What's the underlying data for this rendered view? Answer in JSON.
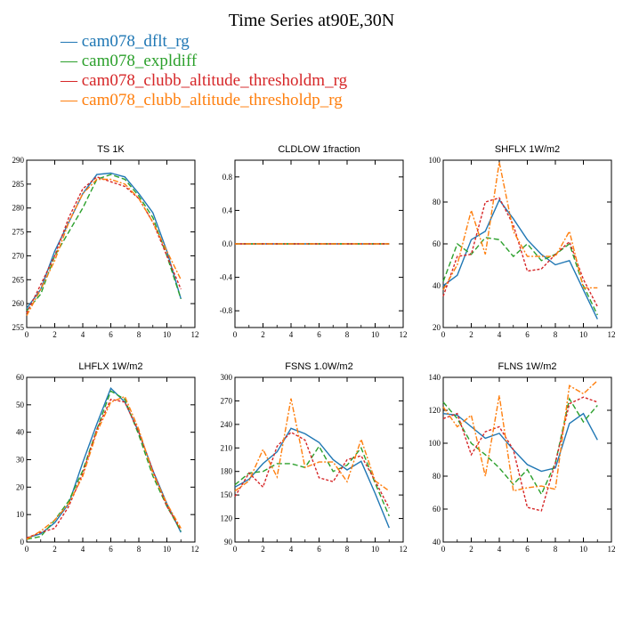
{
  "title": "Time Series at90E,30N",
  "legend": [
    {
      "label": "cam078_dflt_rg",
      "color": "#1f77b4"
    },
    {
      "label": "cam078_expldiff",
      "color": "#2ca02c"
    },
    {
      "label": "cam078_clubb_altitude_thresholdm_rg",
      "color": "#d62728"
    },
    {
      "label": "cam078_clubb_altitude_thresholdp_rg",
      "color": "#ff7f0e"
    }
  ],
  "chart_data": [
    {
      "type": "line",
      "title": "TS   1K",
      "x": [
        0,
        1,
        2,
        3,
        4,
        5,
        6,
        7,
        8,
        9,
        10,
        11
      ],
      "xlim": [
        0,
        12
      ],
      "xticks": [
        0,
        2,
        4,
        6,
        8,
        10,
        12
      ],
      "ylim": [
        255,
        290
      ],
      "yticks": [
        255,
        260,
        265,
        270,
        275,
        280,
        285,
        290
      ],
      "series": [
        {
          "name": "cam078_dflt_rg",
          "values": [
            259,
            263,
            271,
            277,
            283,
            287,
            287.3,
            286.5,
            283,
            279,
            271,
            261
          ]
        },
        {
          "name": "cam078_expldiff",
          "values": [
            258.5,
            262,
            270,
            275,
            280,
            286,
            287,
            286,
            282.5,
            278,
            270,
            261
          ]
        },
        {
          "name": "cam078_clubb_altitude_thresholdm_rg",
          "values": [
            258,
            264,
            270,
            278,
            284,
            286.5,
            285.5,
            284.5,
            282,
            277,
            270,
            263
          ]
        },
        {
          "name": "cam078_clubb_altitude_thresholdp_rg",
          "values": [
            257.5,
            263,
            269,
            277,
            283,
            286,
            286,
            285,
            282,
            277,
            271,
            265
          ]
        }
      ]
    },
    {
      "type": "line",
      "title": "CLDLOW   1fraction",
      "x": [
        0,
        1,
        2,
        3,
        4,
        5,
        6,
        7,
        8,
        9,
        10,
        11
      ],
      "xlim": [
        0,
        12
      ],
      "xticks": [
        0,
        2,
        4,
        6,
        8,
        10,
        12
      ],
      "ylim": [
        -1,
        1
      ],
      "yticks": [
        -0.8,
        -0.4,
        0.0,
        0.4,
        0.8
      ],
      "ytick_labels": [
        "-0.8",
        "-0.4",
        "0.0",
        "0.4",
        "0.8"
      ],
      "series": [
        {
          "name": "cam078_dflt_rg",
          "values": [
            0,
            0,
            0,
            0,
            0,
            0,
            0,
            0,
            0,
            0,
            0,
            0
          ]
        },
        {
          "name": "cam078_expldiff",
          "values": [
            0,
            0,
            0,
            0,
            0,
            0,
            0,
            0,
            0,
            0,
            0,
            0
          ]
        },
        {
          "name": "cam078_clubb_altitude_thresholdm_rg",
          "values": [
            0,
            0,
            0,
            0,
            0,
            0,
            0,
            0,
            0,
            0,
            0,
            0
          ]
        },
        {
          "name": "cam078_clubb_altitude_thresholdp_rg",
          "values": [
            0,
            0,
            0,
            0,
            0,
            0,
            0,
            0,
            0,
            0,
            0,
            0
          ]
        }
      ]
    },
    {
      "type": "line",
      "title": "SHFLX   1W/m2",
      "x": [
        0,
        1,
        2,
        3,
        4,
        5,
        6,
        7,
        8,
        9,
        10,
        11
      ],
      "xlim": [
        0,
        12
      ],
      "xticks": [
        0,
        2,
        4,
        6,
        8,
        10,
        12
      ],
      "ylim": [
        20,
        100
      ],
      "yticks": [
        20,
        40,
        60,
        80,
        100
      ],
      "series": [
        {
          "name": "cam078_dflt_rg",
          "values": [
            40,
            45,
            62,
            66,
            81,
            72,
            62,
            55,
            50,
            52,
            38,
            24
          ]
        },
        {
          "name": "cam078_expldiff",
          "values": [
            42,
            60,
            55,
            63,
            62,
            54,
            60,
            52,
            55,
            60,
            40,
            26
          ]
        },
        {
          "name": "cam078_clubb_altitude_thresholdm_rg",
          "values": [
            35,
            54,
            55,
            80,
            82,
            69,
            47,
            48,
            55,
            61,
            43,
            30
          ]
        },
        {
          "name": "cam078_clubb_altitude_thresholdp_rg",
          "values": [
            38,
            50,
            76,
            55,
            99,
            66,
            54,
            54,
            54,
            66,
            39,
            39
          ]
        }
      ]
    },
    {
      "type": "line",
      "title": "LHFLX   1W/m2",
      "x": [
        0,
        1,
        2,
        3,
        4,
        5,
        6,
        7,
        8,
        9,
        10,
        11
      ],
      "xlim": [
        0,
        12
      ],
      "xticks": [
        0,
        2,
        4,
        6,
        8,
        10,
        12
      ],
      "ylim": [
        0,
        60
      ],
      "yticks": [
        0,
        10,
        20,
        30,
        40,
        50,
        60
      ],
      "series": [
        {
          "name": "cam078_dflt_rg",
          "values": [
            1.5,
            3,
            7,
            14,
            29,
            43,
            56,
            51,
            40,
            26,
            14,
            3.5
          ]
        },
        {
          "name": "cam078_expldiff",
          "values": [
            1,
            2,
            8,
            15,
            26,
            41,
            55,
            52,
            39,
            24,
            13,
            4
          ]
        },
        {
          "name": "cam078_clubb_altitude_thresholdm_rg",
          "values": [
            1.5,
            3.5,
            5,
            13,
            25,
            41,
            52,
            51,
            40,
            26,
            13,
            4.5
          ]
        },
        {
          "name": "cam078_clubb_altitude_thresholdp_rg",
          "values": [
            1,
            4,
            8,
            14,
            24,
            40,
            51,
            53,
            41,
            25,
            14,
            5
          ]
        }
      ]
    },
    {
      "type": "line",
      "title": "FSNS   1.0W/m2",
      "x": [
        0,
        1,
        2,
        3,
        4,
        5,
        6,
        7,
        8,
        9,
        10,
        11
      ],
      "xlim": [
        0,
        12
      ],
      "xticks": [
        0,
        2,
        4,
        6,
        8,
        10,
        12
      ],
      "ylim": [
        90,
        300
      ],
      "yticks": [
        90,
        120,
        150,
        180,
        210,
        240,
        270,
        300
      ],
      "series": [
        {
          "name": "cam078_dflt_rg",
          "values": [
            160,
            170,
            190,
            205,
            235,
            228,
            217,
            195,
            182,
            193,
            152,
            108
          ]
        },
        {
          "name": "cam078_expldiff",
          "values": [
            163,
            178,
            180,
            190,
            190,
            185,
            212,
            180,
            188,
            210,
            165,
            123
          ]
        },
        {
          "name": "cam078_clubb_altitude_thresholdm_rg",
          "values": [
            148,
            178,
            160,
            212,
            230,
            220,
            172,
            167,
            195,
            200,
            168,
            133
          ]
        },
        {
          "name": "cam078_clubb_altitude_thresholdp_rg",
          "values": [
            155,
            168,
            208,
            173,
            273,
            185,
            192,
            192,
            167,
            221,
            168,
            155
          ]
        }
      ]
    },
    {
      "type": "line",
      "title": "FLNS   1W/m2",
      "x": [
        0,
        1,
        2,
        3,
        4,
        5,
        6,
        7,
        8,
        9,
        10,
        11
      ],
      "xlim": [
        0,
        12
      ],
      "xticks": [
        0,
        2,
        4,
        6,
        8,
        10,
        12
      ],
      "ylim": [
        40,
        140
      ],
      "yticks": [
        40,
        60,
        80,
        100,
        120,
        140
      ],
      "series": [
        {
          "name": "cam078_dflt_rg",
          "values": [
            118,
            117,
            110,
            103,
            106,
            96,
            87,
            83,
            85,
            112,
            118,
            102
          ]
        },
        {
          "name": "cam078_expldiff",
          "values": [
            125,
            115,
            100,
            93,
            85,
            75,
            84,
            69,
            88,
            127,
            113,
            123
          ]
        },
        {
          "name": "cam078_clubb_altitude_thresholdm_rg",
          "values": [
            115,
            118,
            93,
            107,
            110,
            96,
            61,
            59,
            88,
            124,
            128,
            125
          ]
        },
        {
          "name": "cam078_clubb_altitude_thresholdp_rg",
          "values": [
            122,
            110,
            117,
            80,
            129,
            71,
            73,
            74,
            72,
            135,
            130,
            138
          ]
        }
      ]
    }
  ]
}
